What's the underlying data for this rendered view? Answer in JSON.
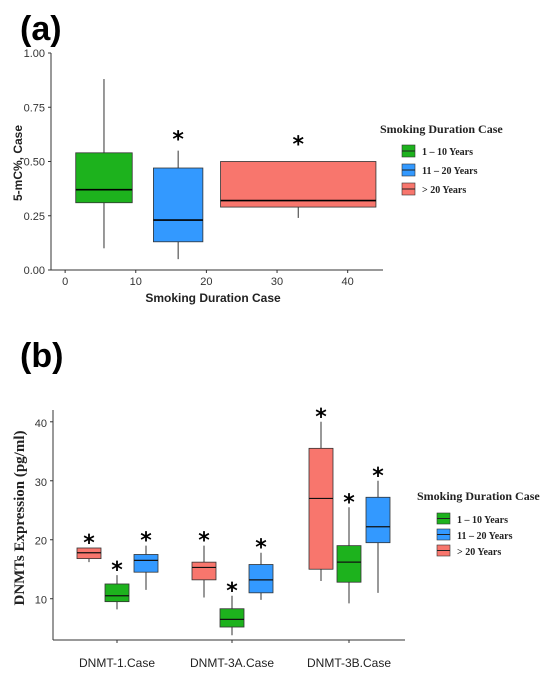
{
  "colors": {
    "green": "#1db21d",
    "blue": "#3399ff",
    "red": "#f8766d",
    "axis": "#333333"
  },
  "panel_a_label": "(a)",
  "panel_b_label": "(b)",
  "chart_data": [
    {
      "type": "box",
      "xlabel": "Smoking Duration Case",
      "ylabel": "5-mC%, Case",
      "xlim": [
        -2,
        45
      ],
      "ylim": [
        0,
        1.0
      ],
      "xticks": [
        "0",
        "10",
        "20",
        "30",
        "40"
      ],
      "xtick_values": [
        0,
        10,
        20,
        30,
        40
      ],
      "yticks": [
        "0.00",
        "0.25",
        "0.50",
        "0.75",
        "1.00"
      ],
      "ytick_values": [
        0,
        0.25,
        0.5,
        0.75,
        1.0
      ],
      "legend": {
        "title": "Smoking Duration Case",
        "position": "right",
        "items": [
          {
            "label": "1 – 10 Years",
            "color": "green"
          },
          {
            "label": "11 – 20 Years",
            "color": "blue"
          },
          {
            "label": "> 20 Years",
            "color": "red"
          }
        ]
      },
      "boxes": [
        {
          "group": "1 – 10 Years",
          "color": "green",
          "x0": 1.5,
          "x1": 9.5,
          "min": 0.1,
          "q1": 0.31,
          "median": 0.37,
          "q3": 0.54,
          "max": 0.88,
          "star": ""
        },
        {
          "group": "11 – 20 Years",
          "color": "blue",
          "x0": 12.5,
          "x1": 19.5,
          "min": 0.05,
          "q1": 0.13,
          "median": 0.23,
          "q3": 0.47,
          "max": 0.55,
          "star": "*"
        },
        {
          "group": "> 20 Years",
          "color": "red",
          "x0": 22,
          "x1": 44,
          "min": 0.24,
          "q1": 0.29,
          "median": 0.32,
          "q3": 0.5,
          "max": 0.5,
          "star": "*"
        }
      ]
    },
    {
      "type": "box",
      "xlabel": "",
      "ylabel": "DNMTs Expression (pg/ml)",
      "ylim": [
        3,
        42
      ],
      "yticks": [
        "10",
        "20",
        "30",
        "40"
      ],
      "ytick_values": [
        10,
        20,
        30,
        40
      ],
      "categories": [
        "DNMT-1.Case",
        "DNMT-3A.Case",
        "DNMT-3B.Case"
      ],
      "legend": {
        "title": "Smoking Duration Case",
        "position": "right",
        "items": [
          {
            "label": "1 – 10 Years",
            "color": "green"
          },
          {
            "label": "11 – 20 Years",
            "color": "blue"
          },
          {
            "label": "> 20 Years",
            "color": "red"
          }
        ]
      },
      "groups_order": [
        "> 20 Years",
        "1 – 10 Years",
        "11 – 20 Years"
      ],
      "boxes": [
        {
          "category": "DNMT-1.Case",
          "group": "> 20 Years",
          "color": "red",
          "min": 16.2,
          "q1": 16.8,
          "median": 17.8,
          "q3": 18.6,
          "max": 18.6,
          "star": "*"
        },
        {
          "category": "DNMT-1.Case",
          "group": "1 – 10 Years",
          "color": "green",
          "min": 8.2,
          "q1": 9.5,
          "median": 10.5,
          "q3": 12.5,
          "max": 14.0,
          "star": "*"
        },
        {
          "category": "DNMT-1.Case",
          "group": "11 – 20 Years",
          "color": "blue",
          "min": 11.5,
          "q1": 14.5,
          "median": 16.5,
          "q3": 17.5,
          "max": 19.0,
          "star": "*"
        },
        {
          "category": "DNMT-3A.Case",
          "group": "> 20 Years",
          "color": "red",
          "min": 10.2,
          "q1": 13.2,
          "median": 15.3,
          "q3": 16.2,
          "max": 19.0,
          "star": "*"
        },
        {
          "category": "DNMT-3A.Case",
          "group": "1 – 10 Years",
          "color": "green",
          "min": 3.8,
          "q1": 5.2,
          "median": 6.5,
          "q3": 8.3,
          "max": 10.5,
          "star": "*"
        },
        {
          "category": "DNMT-3A.Case",
          "group": "11 – 20 Years",
          "color": "blue",
          "min": 9.8,
          "q1": 11.0,
          "median": 13.2,
          "q3": 15.8,
          "max": 17.8,
          "star": "*"
        },
        {
          "category": "DNMT-3B.Case",
          "group": "> 20 Years",
          "color": "red",
          "min": 13.0,
          "q1": 15.0,
          "median": 27.0,
          "q3": 35.5,
          "max": 40.0,
          "star": "*"
        },
        {
          "category": "DNMT-3B.Case",
          "group": "1 – 10 Years",
          "color": "green",
          "min": 9.2,
          "q1": 12.8,
          "median": 16.2,
          "q3": 19.0,
          "max": 25.5,
          "star": "*"
        },
        {
          "category": "DNMT-3B.Case",
          "group": "11 – 20 Years",
          "color": "blue",
          "min": 11.0,
          "q1": 19.5,
          "median": 22.2,
          "q3": 27.2,
          "max": 30.0,
          "star": "*"
        }
      ]
    }
  ]
}
